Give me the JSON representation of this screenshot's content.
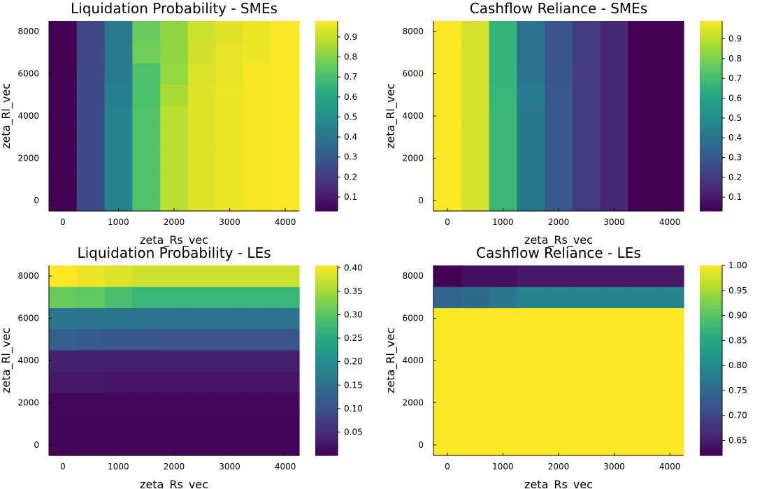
{
  "chart_data": [
    {
      "type": "heatmap",
      "title": "Liquidation Probability - SMEs",
      "xlabel": "zeta_Rs_vec",
      "ylabel": "zeta_Rl_vec",
      "x": [
        0,
        500,
        1000,
        1500,
        2000,
        2500,
        3000,
        3500,
        4000
      ],
      "y": [
        0,
        1000,
        2000,
        3000,
        4000,
        5000,
        6000,
        7000,
        8000
      ],
      "xlim": [
        -250,
        4250
      ],
      "ylim": [
        -500,
        8500
      ],
      "xticks": [
        0,
        1000,
        2000,
        3000,
        4000
      ],
      "yticks": [
        0,
        2000,
        4000,
        6000,
        8000
      ],
      "z": [
        [
          0.03,
          0.25,
          0.45,
          0.72,
          0.88,
          0.94,
          0.96,
          0.97,
          0.98
        ],
        [
          0.03,
          0.25,
          0.45,
          0.72,
          0.88,
          0.94,
          0.96,
          0.97,
          0.98
        ],
        [
          0.03,
          0.25,
          0.45,
          0.72,
          0.88,
          0.94,
          0.96,
          0.97,
          0.98
        ],
        [
          0.03,
          0.25,
          0.45,
          0.72,
          0.88,
          0.94,
          0.96,
          0.97,
          0.98
        ],
        [
          0.03,
          0.25,
          0.45,
          0.72,
          0.88,
          0.94,
          0.96,
          0.97,
          0.98
        ],
        [
          0.03,
          0.25,
          0.44,
          0.71,
          0.86,
          0.94,
          0.96,
          0.97,
          0.98
        ],
        [
          0.03,
          0.25,
          0.43,
          0.71,
          0.83,
          0.93,
          0.95,
          0.97,
          0.98
        ],
        [
          0.03,
          0.24,
          0.43,
          0.77,
          0.82,
          0.92,
          0.95,
          0.96,
          0.98
        ],
        [
          0.03,
          0.24,
          0.42,
          0.76,
          0.82,
          0.91,
          0.94,
          0.96,
          0.98
        ]
      ],
      "colorbar": {
        "min": 0.03,
        "max": 0.98,
        "ticks": [
          0.1,
          0.2,
          0.3,
          0.4,
          0.5,
          0.6,
          0.7,
          0.8,
          0.9
        ],
        "tick_labels": [
          "0.1",
          "0.2",
          "0.3",
          "0.4",
          "0.5",
          "0.6",
          "0.7",
          "0.8",
          "0.9"
        ]
      }
    },
    {
      "type": "heatmap",
      "title": "Cashflow Reliance - SMEs",
      "xlabel": "zeta_Rs_vec",
      "ylabel": "zeta_Rl_vec",
      "x": [
        0,
        500,
        1000,
        1500,
        2000,
        2500,
        3000,
        3500,
        4000
      ],
      "y": [
        0,
        1000,
        2000,
        3000,
        4000,
        5000,
        6000,
        7000,
        8000
      ],
      "xlim": [
        -250,
        4250
      ],
      "ylim": [
        -500,
        8500
      ],
      "xticks": [
        0,
        1000,
        2000,
        3000,
        4000
      ],
      "yticks": [
        0,
        2000,
        4000,
        6000,
        8000
      ],
      "z": [
        [
          0.99,
          0.93,
          0.68,
          0.42,
          0.3,
          0.2,
          0.14,
          0.03,
          0.03
        ],
        [
          0.99,
          0.93,
          0.68,
          0.42,
          0.3,
          0.2,
          0.14,
          0.03,
          0.03
        ],
        [
          0.99,
          0.93,
          0.68,
          0.42,
          0.3,
          0.2,
          0.14,
          0.03,
          0.03
        ],
        [
          0.99,
          0.93,
          0.68,
          0.42,
          0.3,
          0.2,
          0.14,
          0.03,
          0.03
        ],
        [
          0.99,
          0.93,
          0.68,
          0.42,
          0.3,
          0.2,
          0.14,
          0.03,
          0.03
        ],
        [
          0.99,
          0.93,
          0.67,
          0.43,
          0.3,
          0.2,
          0.14,
          0.03,
          0.03
        ],
        [
          0.99,
          0.93,
          0.66,
          0.4,
          0.29,
          0.2,
          0.14,
          0.03,
          0.03
        ],
        [
          0.99,
          0.93,
          0.66,
          0.39,
          0.28,
          0.2,
          0.14,
          0.03,
          0.03
        ],
        [
          0.99,
          0.93,
          0.66,
          0.39,
          0.28,
          0.2,
          0.14,
          0.03,
          0.03
        ]
      ],
      "colorbar": {
        "min": 0.03,
        "max": 0.99,
        "ticks": [
          0.1,
          0.2,
          0.3,
          0.4,
          0.5,
          0.6,
          0.7,
          0.8,
          0.9
        ],
        "tick_labels": [
          "0.1",
          "0.2",
          "0.3",
          "0.4",
          "0.5",
          "0.6",
          "0.7",
          "0.8",
          "0.9"
        ]
      }
    },
    {
      "type": "heatmap",
      "title": "Liquidation Probability - LEs",
      "xlabel": "zeta_Rs_vec",
      "ylabel": "zeta_Rl_vec",
      "x": [
        0,
        500,
        1000,
        1500,
        2000,
        2500,
        3000,
        3500,
        4000
      ],
      "y": [
        0,
        1000,
        2000,
        3000,
        4000,
        5000,
        6000,
        7000,
        8000
      ],
      "xlim": [
        -250,
        4250
      ],
      "ylim": [
        -500,
        8500
      ],
      "xticks": [
        0,
        1000,
        2000,
        3000,
        4000
      ],
      "yticks": [
        0,
        2000,
        4000,
        6000,
        8000
      ],
      "z": [
        [
          0.005,
          0.005,
          0.005,
          0.005,
          0.005,
          0.005,
          0.005,
          0.005,
          0.005
        ],
        [
          0.005,
          0.005,
          0.005,
          0.005,
          0.005,
          0.005,
          0.005,
          0.005,
          0.005
        ],
        [
          0.007,
          0.007,
          0.007,
          0.007,
          0.007,
          0.007,
          0.007,
          0.007,
          0.007
        ],
        [
          0.03,
          0.027,
          0.025,
          0.025,
          0.025,
          0.025,
          0.025,
          0.025,
          0.025
        ],
        [
          0.04,
          0.038,
          0.036,
          0.035,
          0.035,
          0.035,
          0.035,
          0.035,
          0.035
        ],
        [
          0.125,
          0.115,
          0.11,
          0.11,
          0.105,
          0.105,
          0.105,
          0.105,
          0.105
        ],
        [
          0.16,
          0.16,
          0.16,
          0.155,
          0.155,
          0.155,
          0.155,
          0.155,
          0.155
        ],
        [
          0.31,
          0.305,
          0.285,
          0.27,
          0.27,
          0.27,
          0.27,
          0.27,
          0.27
        ],
        [
          0.405,
          0.395,
          0.385,
          0.375,
          0.375,
          0.375,
          0.375,
          0.375,
          0.375
        ]
      ],
      "colorbar": {
        "min": 0.0,
        "max": 0.405,
        "ticks": [
          0.05,
          0.1,
          0.15,
          0.2,
          0.25,
          0.3,
          0.35,
          0.4
        ],
        "tick_labels": [
          "0.05",
          "0.10",
          "0.15",
          "0.20",
          "0.25",
          "0.30",
          "0.35",
          "0.40"
        ]
      }
    },
    {
      "type": "heatmap",
      "title": "Cashflow Reliance - LEs",
      "xlabel": "zeta_Rs_vec",
      "ylabel": "zeta_Rl_vec",
      "x": [
        0,
        500,
        1000,
        1500,
        2000,
        2500,
        3000,
        3500,
        4000
      ],
      "y": [
        0,
        1000,
        2000,
        3000,
        4000,
        5000,
        6000,
        7000,
        8000
      ],
      "xlim": [
        -250,
        4250
      ],
      "ylim": [
        -500,
        8500
      ],
      "xticks": [
        0,
        1000,
        2000,
        3000,
        4000
      ],
      "yticks": [
        0,
        2000,
        4000,
        6000,
        8000
      ],
      "z": [
        [
          1.0,
          1.0,
          1.0,
          1.0,
          1.0,
          1.0,
          1.0,
          1.0,
          1.0
        ],
        [
          1.0,
          1.0,
          1.0,
          1.0,
          1.0,
          1.0,
          1.0,
          1.0,
          1.0
        ],
        [
          1.0,
          1.0,
          1.0,
          1.0,
          1.0,
          1.0,
          1.0,
          1.0,
          1.0
        ],
        [
          1.0,
          1.0,
          1.0,
          1.0,
          1.0,
          1.0,
          1.0,
          1.0,
          1.0
        ],
        [
          1.0,
          1.0,
          1.0,
          1.0,
          1.0,
          1.0,
          1.0,
          1.0,
          1.0
        ],
        [
          1.0,
          1.0,
          1.0,
          1.0,
          1.0,
          1.0,
          1.0,
          1.0,
          1.0
        ],
        [
          1.0,
          1.0,
          1.0,
          1.0,
          1.0,
          1.0,
          1.0,
          1.0,
          1.0
        ],
        [
          0.745,
          0.755,
          0.77,
          0.79,
          0.79,
          0.79,
          0.79,
          0.79,
          0.79
        ],
        [
          0.62,
          0.635,
          0.635,
          0.645,
          0.645,
          0.645,
          0.645,
          0.645,
          0.645
        ]
      ],
      "colorbar": {
        "min": 0.62,
        "max": 1.0,
        "ticks": [
          0.65,
          0.7,
          0.75,
          0.8,
          0.85,
          0.9,
          0.95,
          1.0
        ],
        "tick_labels": [
          "0.65",
          "0.70",
          "0.75",
          "0.80",
          "0.85",
          "0.90",
          "0.95",
          "1.00"
        ]
      }
    }
  ]
}
